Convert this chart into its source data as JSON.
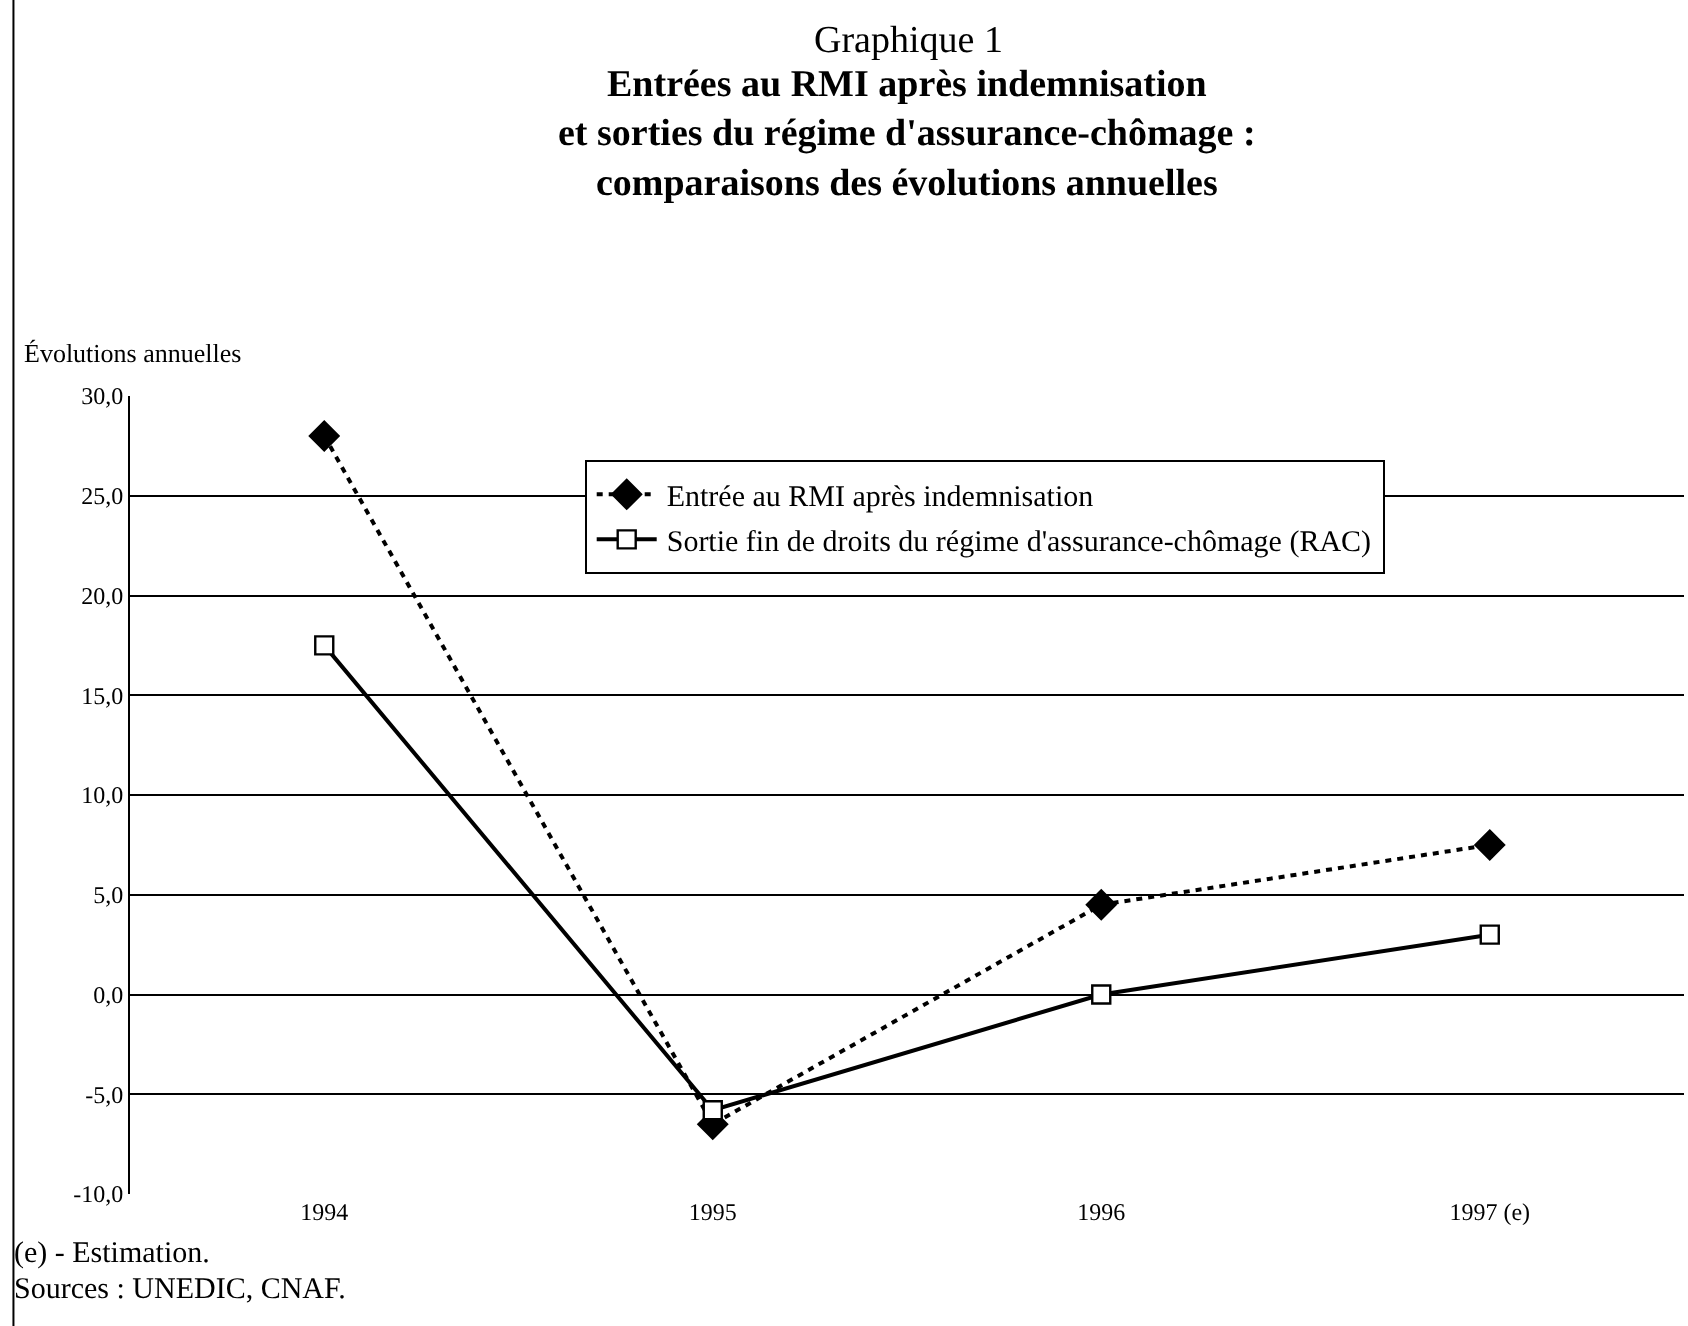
{
  "chart_data": {
    "type": "line",
    "title": "Graphique 1",
    "subtitle": "Entrées au RMI après indemnisation\net sorties du régime d'assurance-chômage :\ncomparaisons des évolutions annuelles",
    "ylabel": "Évolutions annuelles",
    "categories": [
      "1994",
      "1995",
      "1996",
      "1997 (e)"
    ],
    "series": [
      {
        "name": "Entrée au RMI après indemnisation",
        "color": "#000000",
        "values": [
          28.0,
          -6.5,
          4.5,
          7.5
        ],
        "marker": "diamond",
        "line_style": "dotted"
      },
      {
        "name": "Sortie fin de droits du régime d'assurance-chômage (RAC)",
        "color": "#000000",
        "values": [
          17.5,
          -5.8,
          0.0,
          3.0
        ],
        "marker": "square",
        "line_style": "solid"
      }
    ],
    "ylim": [
      -10,
      30
    ],
    "yticks": [
      {
        "value": -10,
        "label": "-10,0"
      },
      {
        "value": -5,
        "label": "-5,0"
      },
      {
        "value": 0,
        "label": "0,0"
      },
      {
        "value": 5,
        "label": "5,0"
      },
      {
        "value": 10,
        "label": "10,0"
      },
      {
        "value": 15,
        "label": "15,0"
      },
      {
        "value": 20,
        "label": "20,0"
      },
      {
        "value": 25,
        "label": "25,0"
      },
      {
        "value": 30,
        "label": "30,0"
      }
    ],
    "grid": "y",
    "legend": "top",
    "annotations": [
      "(e) - Estimation.",
      "Sources : UNEDIC, CNAF."
    ]
  }
}
